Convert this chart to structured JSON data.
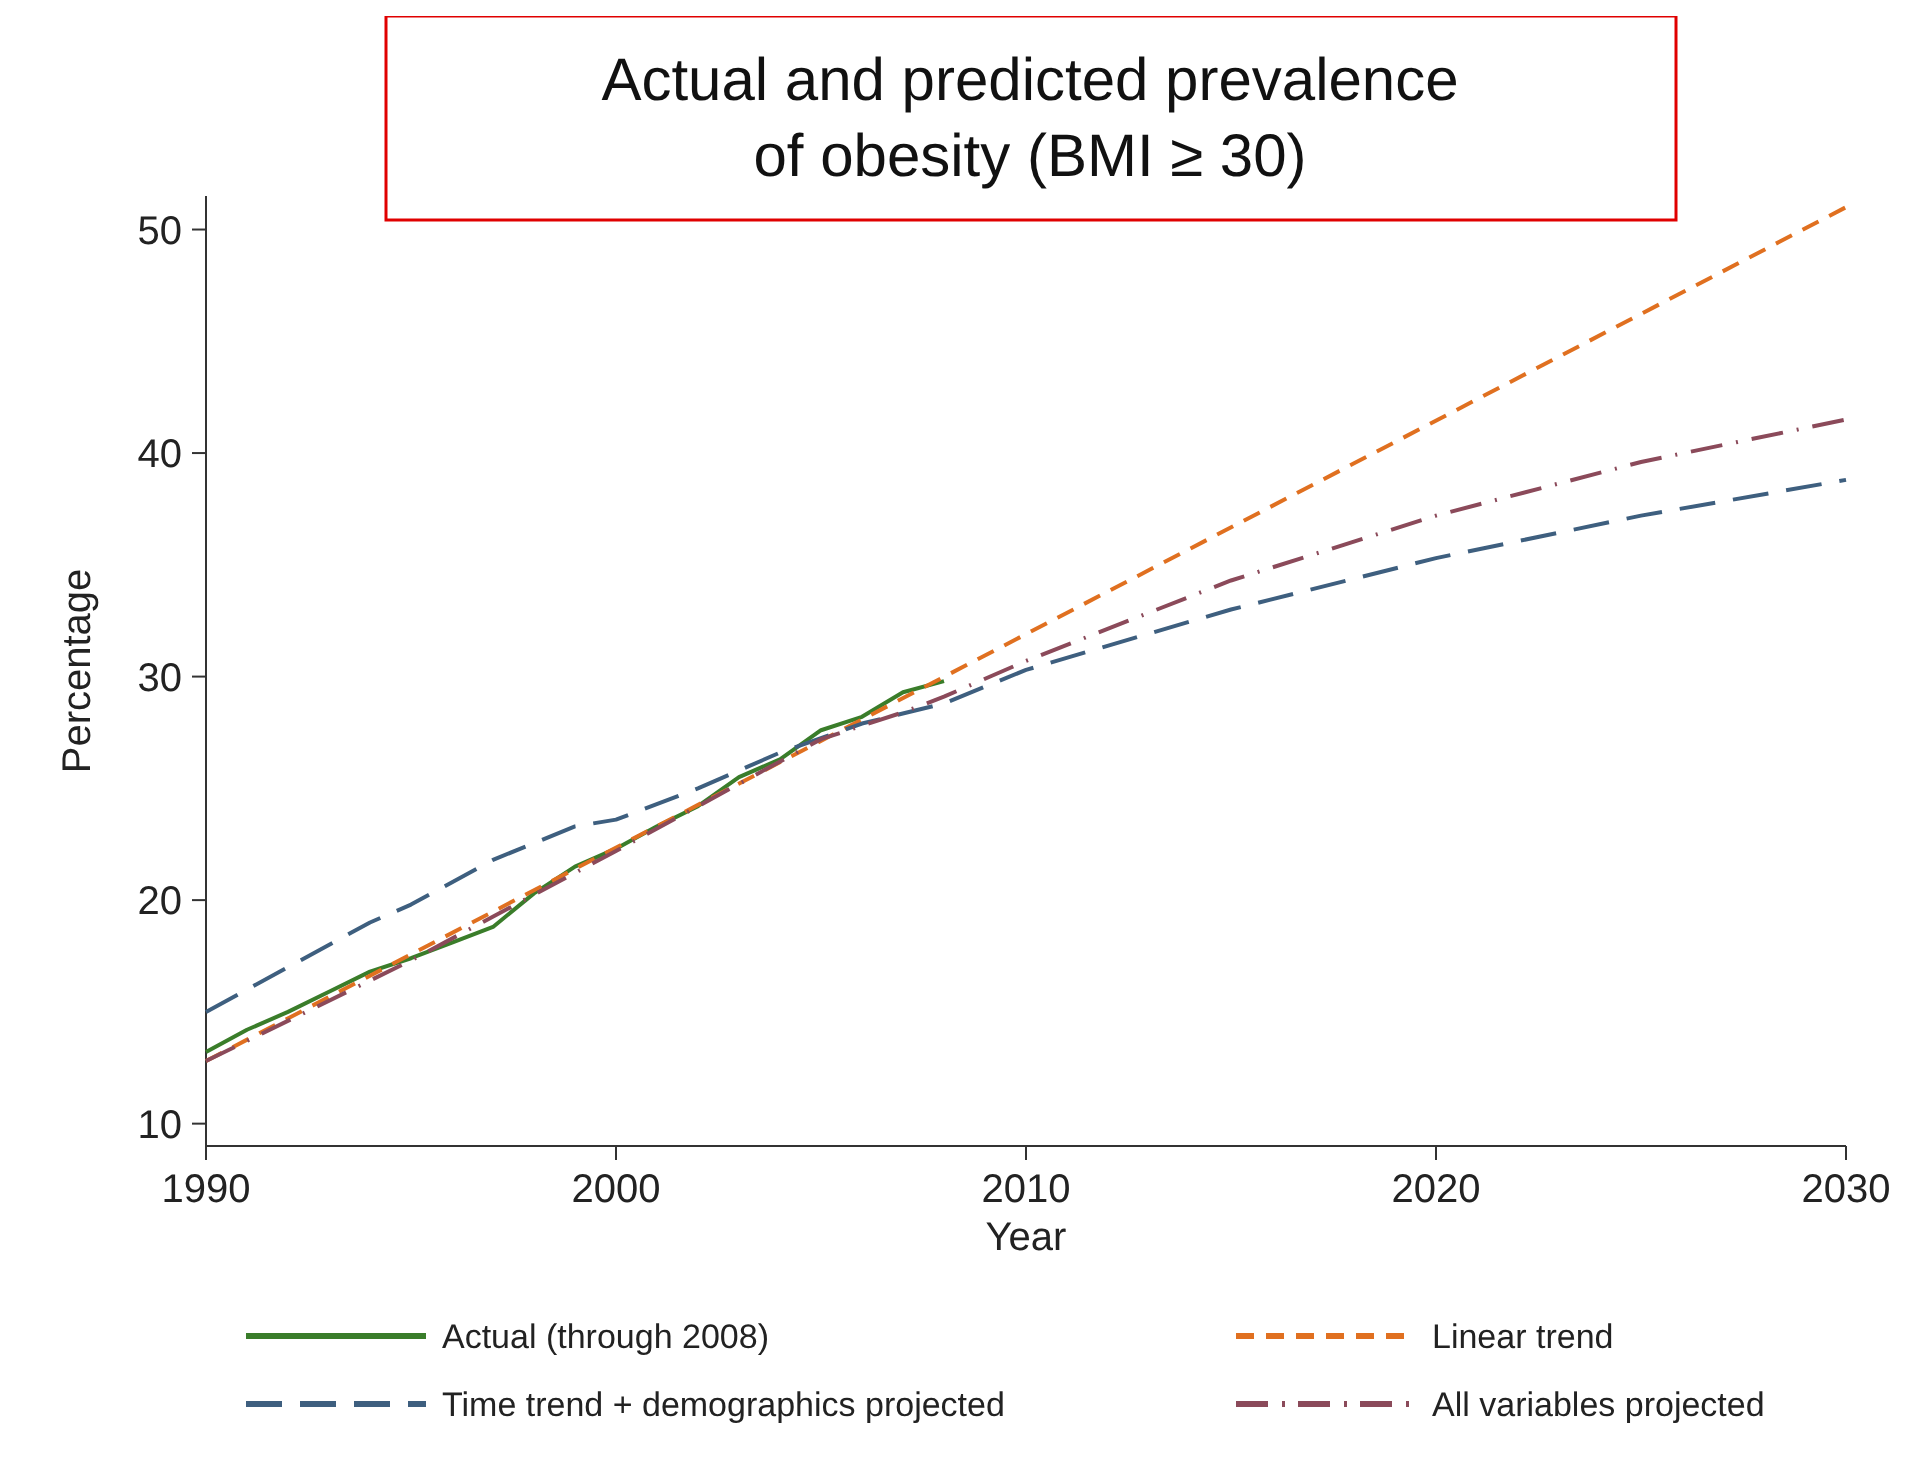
{
  "chart_data": {
    "type": "line",
    "title": "Actual and predicted prevalence of obesity (BMI ≥ 30)",
    "xlabel": "Year",
    "ylabel": "Percentage",
    "xlim": [
      1990,
      2030
    ],
    "xticks": [
      1990,
      2000,
      2010,
      2020,
      2030
    ],
    "ylim": [
      9,
      51.5
    ],
    "yticks": [
      10,
      20,
      30,
      40,
      50
    ],
    "grid": false,
    "legend": "bottom",
    "series": [
      {
        "name": "Actual (through 2008)",
        "color": "#3a7d2a",
        "line_style": "solid",
        "x": [
          1990,
          1991,
          1992,
          1993,
          1994,
          1995,
          1996,
          1997,
          1998,
          1999,
          2000,
          2001,
          2002,
          2003,
          2004,
          2005,
          2006,
          2007,
          2008
        ],
        "values": [
          13.2,
          14.2,
          15.0,
          15.9,
          16.8,
          17.4,
          18.1,
          18.8,
          20.3,
          21.5,
          22.3,
          23.3,
          24.2,
          25.5,
          26.3,
          27.6,
          28.2,
          29.3,
          29.8
        ]
      },
      {
        "name": "Linear trend",
        "color": "#e07020",
        "line_style": "dashed",
        "x": [
          1990,
          2030
        ],
        "values": [
          12.8,
          51.0
        ]
      },
      {
        "name": "Time trend + demographics projected",
        "color": "#3e5f7f",
        "line_style": "longdash",
        "x": [
          1990,
          1992,
          1994,
          1995,
          1997,
          1999,
          2000,
          2002,
          2004,
          2006,
          2008,
          2010,
          2015,
          2020,
          2025,
          2030
        ],
        "values": [
          15.0,
          17.0,
          19.0,
          19.8,
          21.8,
          23.3,
          23.6,
          25.0,
          26.6,
          27.9,
          28.8,
          30.3,
          33.0,
          35.3,
          37.2,
          38.8
        ]
      },
      {
        "name": "All variables projected",
        "color": "#8b4a5a",
        "line_style": "dashdot",
        "x": [
          1990,
          1995,
          2000,
          2003,
          2005,
          2007,
          2008,
          2010,
          2015,
          2020,
          2025,
          2030
        ],
        "values": [
          12.8,
          17.3,
          22.2,
          25.2,
          27.2,
          28.4,
          29.1,
          30.7,
          34.3,
          37.2,
          39.6,
          41.5
        ]
      }
    ]
  }
}
